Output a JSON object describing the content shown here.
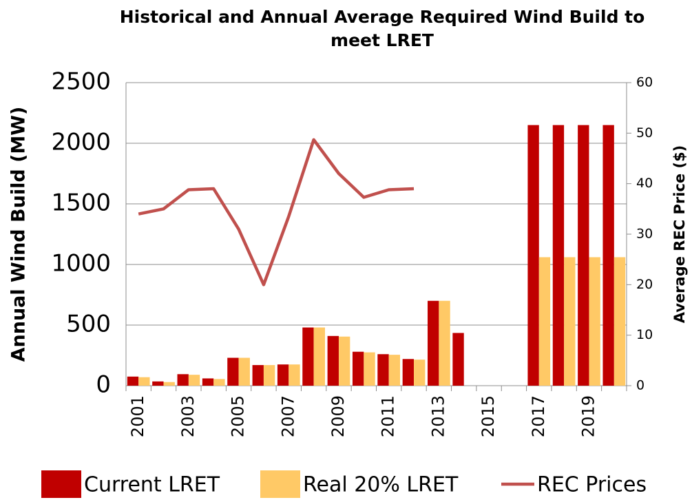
{
  "chart_data": {
    "type": "bar",
    "title": "Historical and Annual Average Required Wind Build to meet LRET",
    "ylabel": "Annual Wind Build (MW)",
    "y2label": "Average REC Price ($)",
    "categories": [
      "2001",
      null,
      "2003",
      null,
      "2005",
      null,
      "2007",
      null,
      "2009",
      null,
      "2011",
      null,
      "2013",
      null,
      "2015",
      null,
      "2017",
      null,
      "2019",
      null
    ],
    "series": [
      {
        "name": "Current LRET",
        "type": "bar",
        "color": "#c00000",
        "values": [
          75,
          35,
          95,
          60,
          230,
          170,
          175,
          480,
          410,
          280,
          260,
          220,
          700,
          435,
          null,
          null,
          2150,
          2150,
          2150,
          2150
        ]
      },
      {
        "name": "Real 20% LRET",
        "type": "bar",
        "color": "#ffc966",
        "values": [
          70,
          30,
          90,
          55,
          230,
          170,
          175,
          480,
          405,
          275,
          255,
          215,
          700,
          null,
          null,
          null,
          1060,
          1060,
          1060,
          1060
        ]
      },
      {
        "name": "REC Prices",
        "type": "line",
        "axis": "y2",
        "color": "#c0504d",
        "values": [
          34,
          35,
          38.8,
          39,
          31,
          20,
          33.5,
          48.7,
          42,
          37.3,
          38.8,
          39,
          null,
          null,
          null,
          null,
          null,
          null,
          null,
          null
        ]
      }
    ],
    "ylim": [
      0,
      2500
    ],
    "yticks": [
      0,
      500,
      1000,
      1500,
      2000,
      2500
    ],
    "y2lim": [
      0,
      60
    ],
    "y2ticks": [
      0,
      10,
      20,
      30,
      40,
      50,
      60
    ],
    "grid": true,
    "legend": "bottom"
  }
}
